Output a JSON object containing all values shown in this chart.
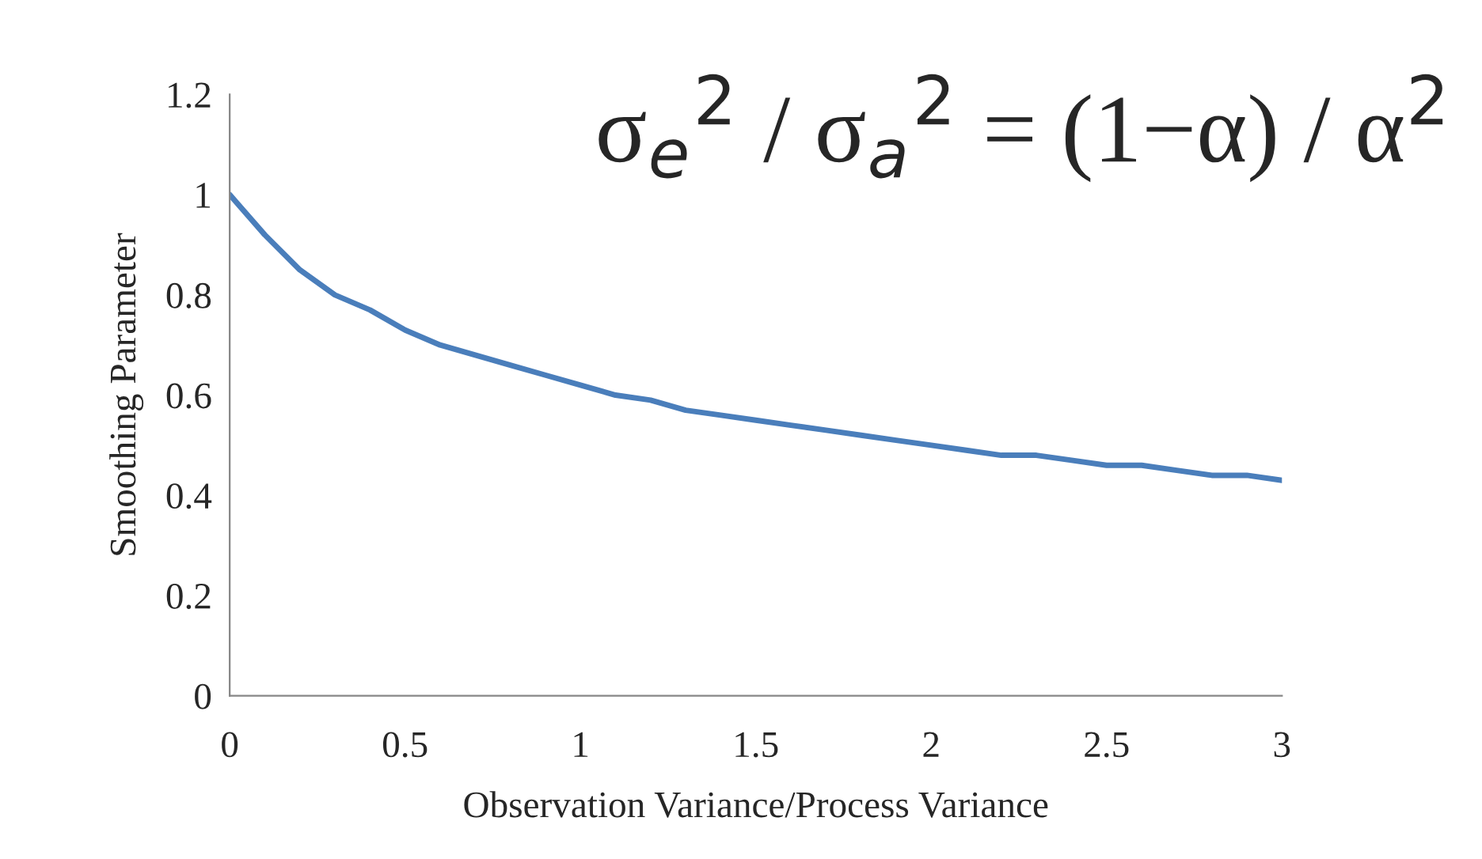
{
  "chart_data": {
    "type": "line",
    "xlabel": "Observation Variance/Process Variance",
    "ylabel": "Smoothing Parameter",
    "x": [
      0,
      0.1,
      0.2,
      0.3,
      0.4,
      0.5,
      0.6,
      0.7,
      0.8,
      0.9,
      1,
      1.1,
      1.2,
      1.3,
      1.4,
      1.5,
      1.6,
      1.7,
      1.8,
      1.9,
      2,
      2.1,
      2.2,
      2.3,
      2.4,
      2.5,
      2.6,
      2.7,
      2.8,
      2.9,
      3
    ],
    "series": [
      {
        "color": "#4a7ebb",
        "values": [
          1.0,
          0.92,
          0.85,
          0.8,
          0.77,
          0.73,
          0.7,
          0.68,
          0.66,
          0.64,
          0.62,
          0.6,
          0.59,
          0.57,
          0.56,
          0.55,
          0.54,
          0.53,
          0.52,
          0.51,
          0.5,
          0.49,
          0.48,
          0.48,
          0.47,
          0.46,
          0.46,
          0.45,
          0.44,
          0.44,
          0.43
        ]
      }
    ],
    "xlim": [
      0,
      3
    ],
    "xticks": [
      0,
      0.5,
      1,
      1.5,
      2,
      2.5,
      3
    ],
    "ylim": [
      0,
      1.2
    ],
    "yticks": [
      0,
      0.2,
      0.4,
      0.6,
      0.8,
      1,
      1.2
    ],
    "grid": false,
    "marker": "none",
    "line_style": "solid",
    "annotations": [
      "σ$_{e}$$^{2}$ / σ$_{a}$$^{2}$ = (1−α) / α$^{2}$"
    ]
  }
}
